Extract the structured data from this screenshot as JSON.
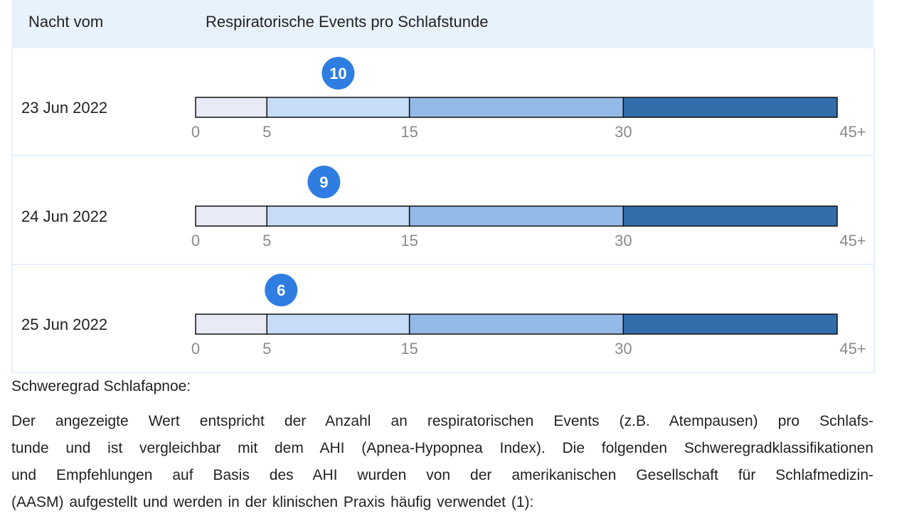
{
  "table": {
    "headers": [
      "Nacht vom",
      "Respiratorische Events pro Schlafstunde"
    ],
    "scale": {
      "lim": [
        0,
        45
      ],
      "ticks": [
        0,
        5,
        15,
        30,
        {
          "value": 45,
          "label": "45+"
        }
      ],
      "band_colors": [
        "#e8eaf6",
        "#c6dcf7",
        "#93b9e6",
        "#336eac"
      ],
      "marker_color": "#2f7de1"
    },
    "rows": [
      {
        "date": "23 Jun 2022",
        "value": 10
      },
      {
        "date": "24 Jun 2022",
        "value": 9
      },
      {
        "date": "25 Jun 2022",
        "value": 6
      }
    ]
  },
  "text": {
    "heading": "Schweregrad Schlafapnoe:",
    "paragraph_lines": [
      "Der angezeigte Wert entspricht der Anzahl an respiratorischen Events (z.B. Atempausen) pro Schlafs-",
      "tunde und ist vergleichbar mit dem AHI (Apnea-Hypopnea Index). Die folgenden Schweregradklassifikationen",
      "und Empfehlungen auf Basis des AHI wurden von der amerikanischen Gesellschaft für Schlafmedizin-",
      "(AASM) aufgestellt und werden in der klinischen Praxis häufig verwendet (1):"
    ]
  }
}
